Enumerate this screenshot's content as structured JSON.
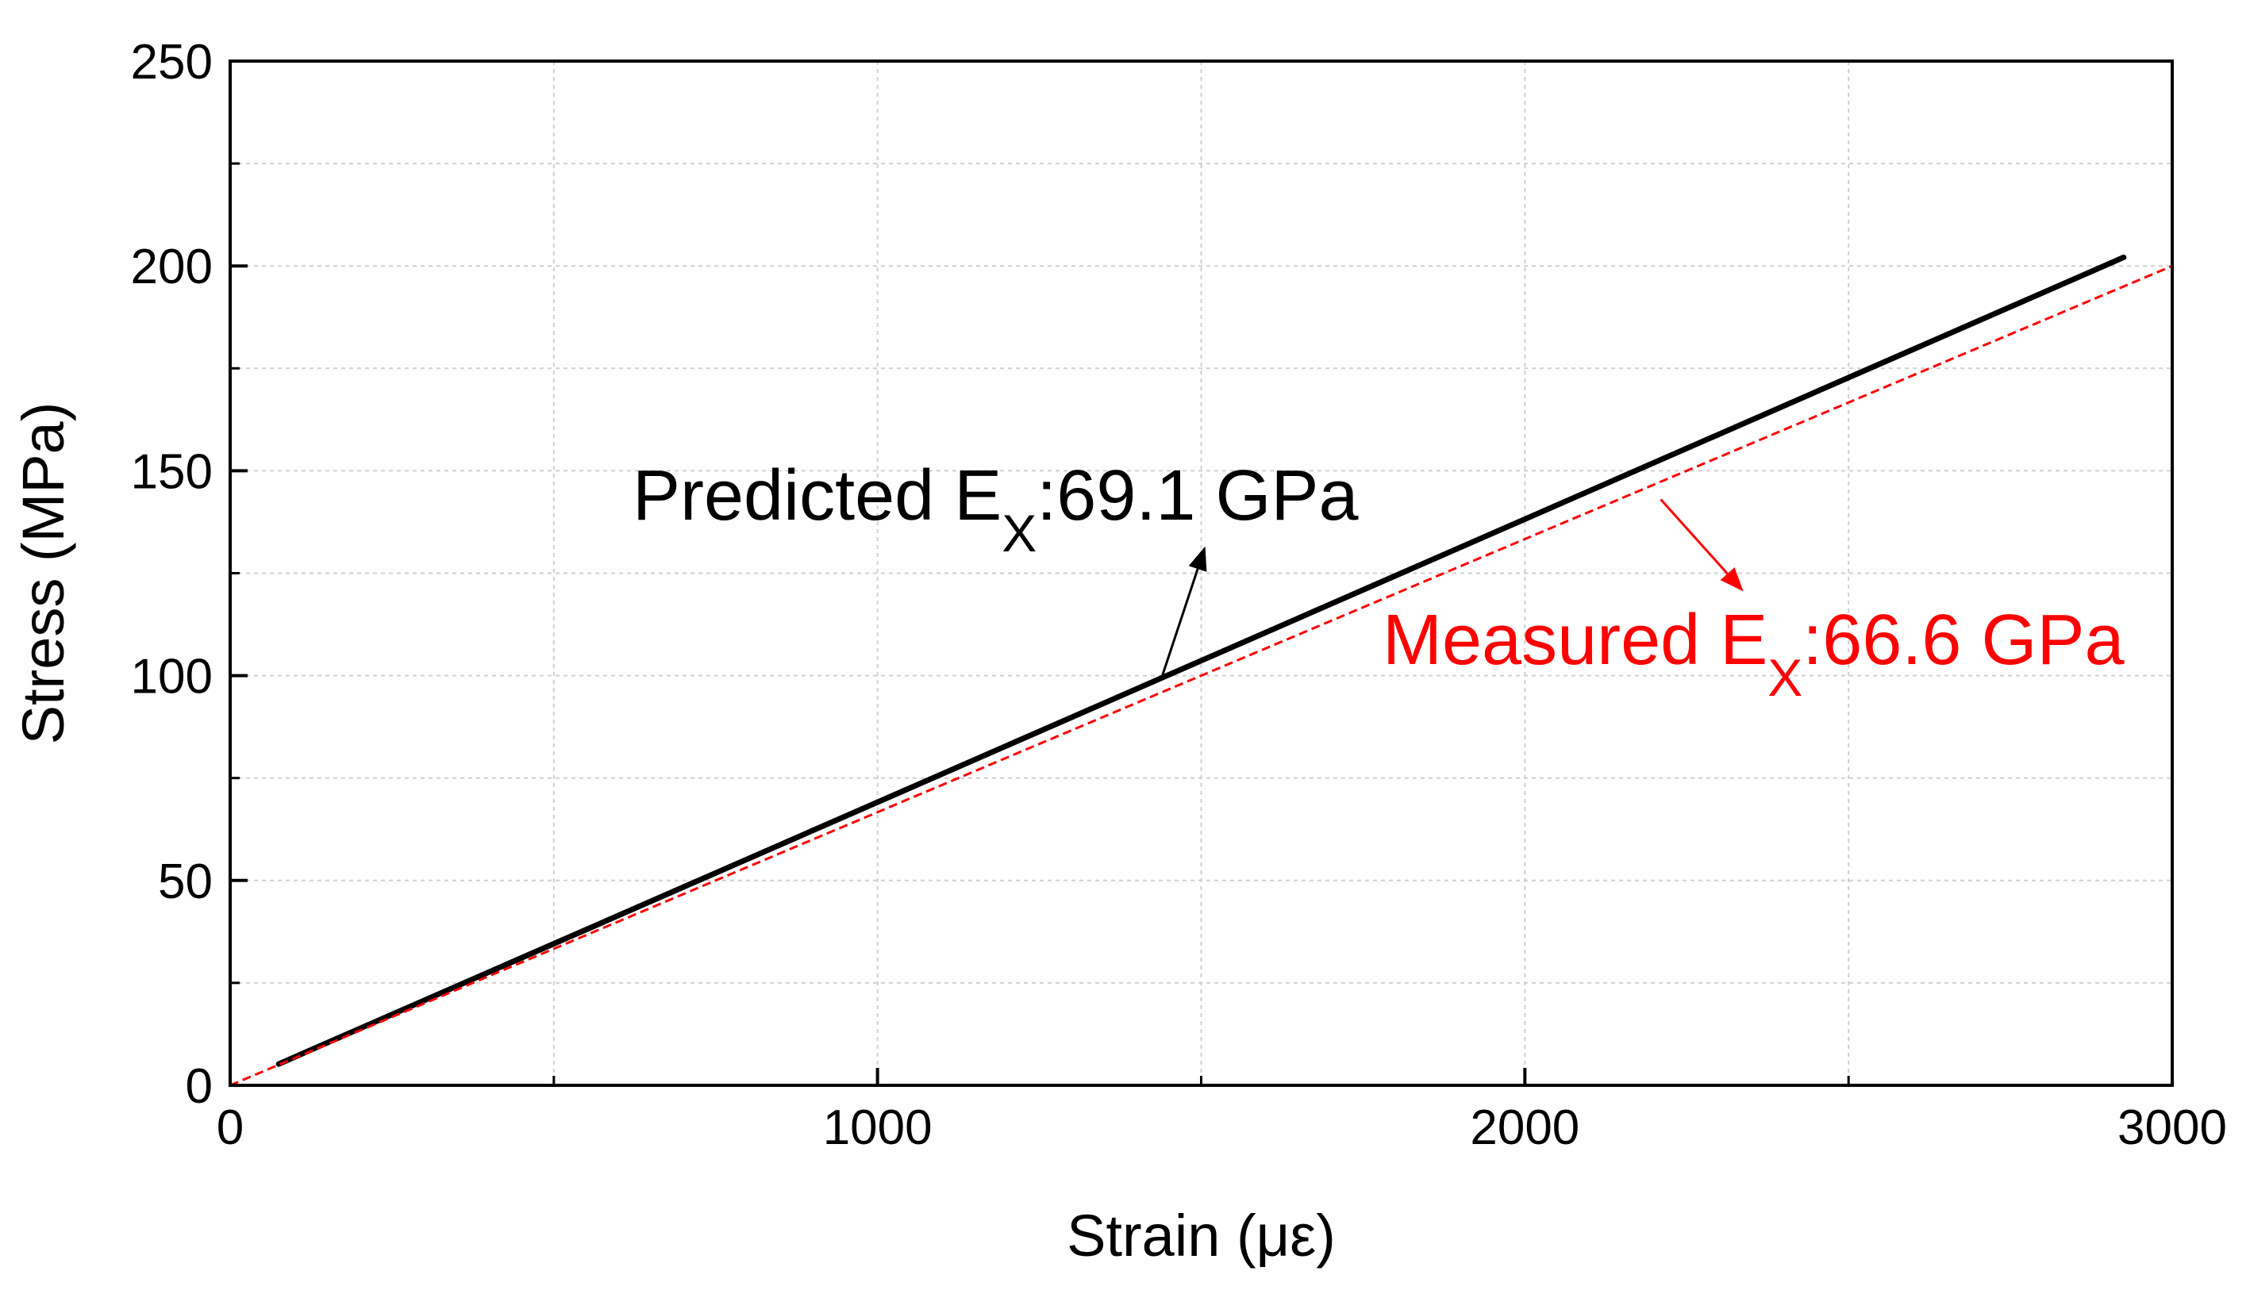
{
  "chart_data": {
    "type": "line",
    "title": "",
    "xlabel": "Strain (με)",
    "ylabel": "Stress (MPa)",
    "xlim": [
      0,
      3000
    ],
    "ylim": [
      0,
      250
    ],
    "x_ticks": [
      0,
      1000,
      2000,
      3000
    ],
    "x_tick_labels": [
      "0",
      "1000",
      "2000",
      "3000"
    ],
    "y_ticks": [
      0,
      50,
      100,
      150,
      200,
      250
    ],
    "y_tick_labels": [
      "0",
      "50",
      "100",
      "150",
      "200",
      "250"
    ],
    "x_minor_ticks": [
      500,
      1500,
      2500
    ],
    "y_minor_ticks": [
      25,
      75,
      125,
      175,
      225
    ],
    "grid": true,
    "legend": "none",
    "series": [
      {
        "key": "predicted",
        "style": "solid",
        "color": "#000000",
        "x": [
          75,
          2925
        ],
        "y": [
          5.2,
          202.1
        ]
      },
      {
        "key": "measured",
        "style": "dashed",
        "color": "#ff0000",
        "x": [
          0,
          3000
        ],
        "y": [
          0,
          200
        ]
      }
    ],
    "annotations": [
      {
        "key": "predicted",
        "text_main": "Predicted E",
        "text_sub": "X",
        "text_rest": ":69.1 GPa",
        "color": "#000000",
        "arrow_from": [
          1440,
          100
        ],
        "arrow_to": [
          1505,
          131
        ]
      },
      {
        "key": "measured",
        "text_main": "Measured E",
        "text_sub": "X",
        "text_rest": ":66.6 GPa",
        "color": "#ff0000",
        "arrow_from": [
          2210,
          143
        ],
        "arrow_to": [
          2335,
          121
        ]
      }
    ]
  }
}
